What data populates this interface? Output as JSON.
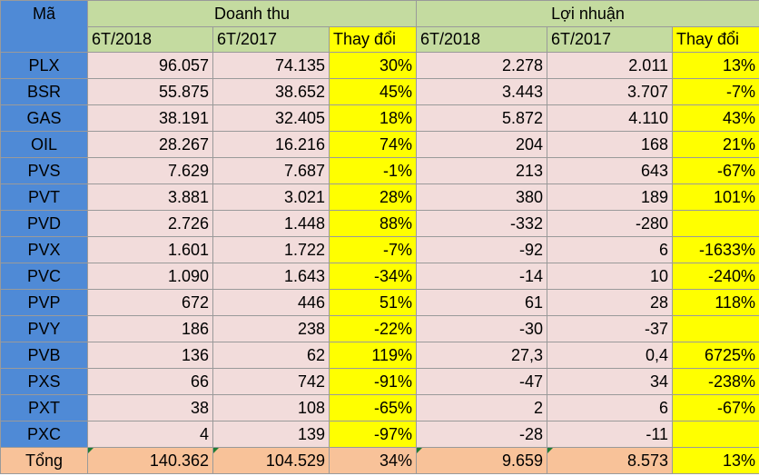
{
  "header": {
    "code_label": "Mã",
    "revenue_group": "Doanh thu",
    "profit_group": "Lợi nhuận",
    "col_2018": "6T/2018",
    "col_2017": "6T/2017",
    "col_change": "Thay đổi"
  },
  "rows": [
    {
      "code": "PLX",
      "rev18": "96.057",
      "rev17": "74.135",
      "rev_chg": "30%",
      "pro18": "2.278",
      "pro17": "2.011",
      "pro_chg": "13%"
    },
    {
      "code": "BSR",
      "rev18": "55.875",
      "rev17": "38.652",
      "rev_chg": "45%",
      "pro18": "3.443",
      "pro17": "3.707",
      "pro_chg": "-7%"
    },
    {
      "code": "GAS",
      "rev18": "38.191",
      "rev17": "32.405",
      "rev_chg": "18%",
      "pro18": "5.872",
      "pro17": "4.110",
      "pro_chg": "43%"
    },
    {
      "code": "OIL",
      "rev18": "28.267",
      "rev17": "16.216",
      "rev_chg": "74%",
      "pro18": "204",
      "pro17": "168",
      "pro_chg": "21%"
    },
    {
      "code": "PVS",
      "rev18": "7.629",
      "rev17": "7.687",
      "rev_chg": "-1%",
      "pro18": "213",
      "pro17": "643",
      "pro_chg": "-67%"
    },
    {
      "code": "PVT",
      "rev18": "3.881",
      "rev17": "3.021",
      "rev_chg": "28%",
      "pro18": "380",
      "pro17": "189",
      "pro_chg": "101%"
    },
    {
      "code": "PVD",
      "rev18": "2.726",
      "rev17": "1.448",
      "rev_chg": "88%",
      "pro18": "-332",
      "pro17": "-280",
      "pro_chg": ""
    },
    {
      "code": "PVX",
      "rev18": "1.601",
      "rev17": "1.722",
      "rev_chg": "-7%",
      "pro18": "-92",
      "pro17": "6",
      "pro_chg": "-1633%"
    },
    {
      "code": "PVC",
      "rev18": "1.090",
      "rev17": "1.643",
      "rev_chg": "-34%",
      "pro18": "-14",
      "pro17": "10",
      "pro_chg": "-240%"
    },
    {
      "code": "PVP",
      "rev18": "672",
      "rev17": "446",
      "rev_chg": "51%",
      "pro18": "61",
      "pro17": "28",
      "pro_chg": "118%"
    },
    {
      "code": "PVY",
      "rev18": "186",
      "rev17": "238",
      "rev_chg": "-22%",
      "pro18": "-30",
      "pro17": "-37",
      "pro_chg": ""
    },
    {
      "code": "PVB",
      "rev18": "136",
      "rev17": "62",
      "rev_chg": "119%",
      "pro18": "27,3",
      "pro17": "0,4",
      "pro_chg": "6725%"
    },
    {
      "code": "PXS",
      "rev18": "66",
      "rev17": "742",
      "rev_chg": "-91%",
      "pro18": "-47",
      "pro17": "34",
      "pro_chg": "-238%"
    },
    {
      "code": "PXT",
      "rev18": "38",
      "rev17": "108",
      "rev_chg": "-65%",
      "pro18": "2",
      "pro17": "6",
      "pro_chg": "-67%"
    },
    {
      "code": "PXC",
      "rev18": "4",
      "rev17": "139",
      "rev_chg": "-97%",
      "pro18": "-28",
      "pro17": "-11",
      "pro_chg": ""
    }
  ],
  "total": {
    "label": "Tổng",
    "rev18": "140.362",
    "rev17": "104.529",
    "rev_chg": "34%",
    "pro18": "9.659",
    "pro17": "8.573",
    "pro_chg": "13%"
  },
  "colors": {
    "header_blue": "#4f8ad6",
    "header_green": "#c4dba0",
    "highlight_yellow": "#ffff00",
    "row_pink": "#f2dcdb",
    "total_orange": "#f8c299"
  }
}
